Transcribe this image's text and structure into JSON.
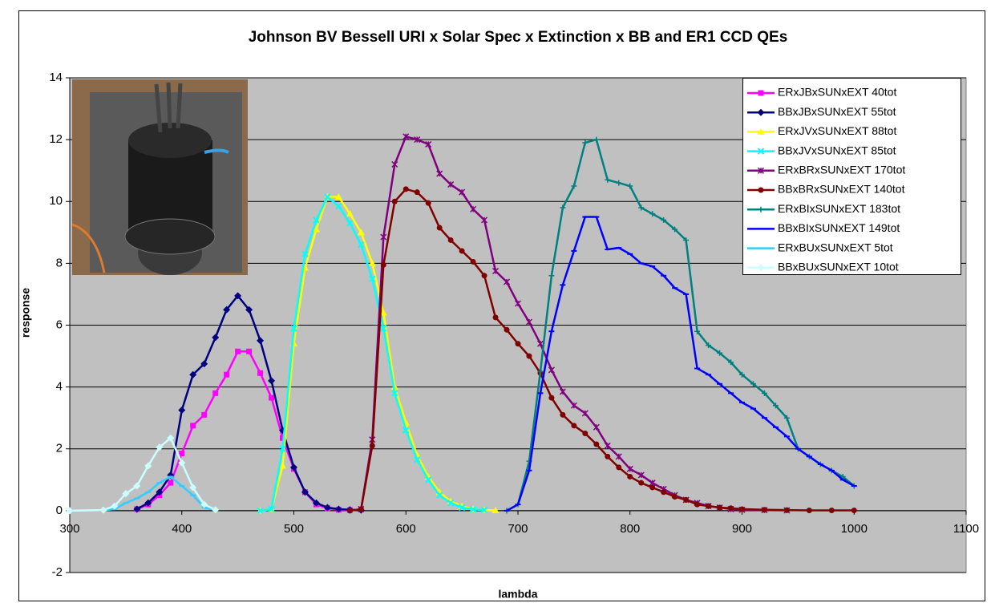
{
  "chart_data": {
    "type": "line",
    "title": "Johnson BV Bessell URI x Solar Spec x Extinction x BB and ER1 CCD QEs",
    "x_label": "lambda",
    "y_label": "response",
    "xlim": [
      300,
      1100
    ],
    "xticks": [
      300,
      400,
      500,
      600,
      700,
      800,
      900,
      1000,
      1100
    ],
    "ylim": [
      -2,
      14
    ],
    "yticks": [
      -2,
      0,
      2,
      4,
      6,
      8,
      10,
      12,
      14
    ],
    "grid": true,
    "legend": "upper right",
    "series": [
      {
        "name": "ERxJBxSUNxEXT 40tot",
        "color": "#ff00ff",
        "marker": "square",
        "x": [
          360,
          370,
          380,
          390,
          400,
          410,
          420,
          430,
          440,
          450,
          460,
          470,
          480,
          490,
          500,
          510,
          520,
          530,
          540,
          550
        ],
        "values": [
          0.05,
          0.2,
          0.5,
          0.9,
          1.85,
          2.75,
          3.1,
          3.8,
          4.4,
          5.15,
          5.15,
          4.45,
          3.65,
          2.35,
          1.35,
          0.6,
          0.2,
          0.08,
          0.03,
          0.02
        ]
      },
      {
        "name": "BBxJBxSUNxEXT 55tot",
        "color": "#000080",
        "marker": "diamond",
        "x": [
          360,
          370,
          380,
          390,
          400,
          410,
          420,
          430,
          440,
          450,
          460,
          470,
          480,
          490,
          500,
          510,
          520,
          530,
          540,
          550,
          560
        ],
        "values": [
          0.05,
          0.25,
          0.6,
          1.15,
          3.25,
          4.4,
          4.75,
          5.6,
          6.5,
          6.95,
          6.5,
          5.5,
          4.2,
          2.6,
          1.4,
          0.6,
          0.25,
          0.1,
          0.05,
          0.03,
          0.02
        ]
      },
      {
        "name": "ERxJVxSUNxEXT 88tot",
        "color": "#ffff00",
        "marker": "triangle",
        "x": [
          470,
          480,
          490,
          500,
          510,
          520,
          530,
          540,
          550,
          560,
          570,
          580,
          590,
          600,
          610,
          620,
          630,
          640,
          650,
          660,
          670,
          680
        ],
        "values": [
          0,
          0.05,
          1.45,
          5.4,
          7.85,
          9.1,
          10.15,
          10.15,
          9.6,
          9.0,
          8.0,
          6.4,
          4.0,
          2.85,
          1.8,
          1.1,
          0.6,
          0.3,
          0.15,
          0.05,
          0.02,
          0.01
        ]
      },
      {
        "name": "BBxJVxSUNxEXT 85tot",
        "color": "#00ffff",
        "marker": "x",
        "x": [
          470,
          480,
          490,
          500,
          510,
          520,
          530,
          540,
          550,
          560,
          570,
          580,
          590,
          600,
          610,
          620,
          630,
          640,
          650,
          660,
          670
        ],
        "values": [
          0,
          0.05,
          2.0,
          5.9,
          8.3,
          9.4,
          10.15,
          9.85,
          9.3,
          8.6,
          7.5,
          5.9,
          3.8,
          2.6,
          1.65,
          1.0,
          0.5,
          0.25,
          0.1,
          0.04,
          0.02
        ]
      },
      {
        "name": "ERxBRxSUNxEXT 170tot",
        "color": "#800080",
        "marker": "star",
        "x": [
          560,
          570,
          580,
          590,
          600,
          610,
          620,
          630,
          640,
          650,
          660,
          670,
          680,
          690,
          700,
          710,
          720,
          730,
          740,
          750,
          760,
          770,
          780,
          790,
          800,
          810,
          820,
          830,
          840,
          850,
          860,
          870,
          880,
          890,
          900,
          920,
          940
        ],
        "values": [
          0.05,
          2.3,
          8.85,
          11.2,
          12.1,
          12.0,
          11.85,
          10.9,
          10.55,
          10.3,
          9.75,
          9.4,
          7.75,
          7.4,
          6.7,
          6.1,
          5.4,
          4.55,
          3.85,
          3.4,
          3.15,
          2.7,
          2.1,
          1.75,
          1.35,
          1.15,
          0.9,
          0.7,
          0.5,
          0.35,
          0.25,
          0.15,
          0.1,
          0.05,
          0.03,
          0.02,
          0.01
        ]
      },
      {
        "name": "BBxBRxSUNxEXT 140tot",
        "color": "#800000",
        "marker": "circle",
        "x": [
          550,
          560,
          570,
          580,
          590,
          600,
          610,
          620,
          630,
          640,
          650,
          660,
          670,
          680,
          690,
          700,
          710,
          720,
          730,
          740,
          750,
          760,
          770,
          780,
          790,
          800,
          810,
          820,
          830,
          840,
          850,
          860,
          870,
          880,
          890,
          900,
          920,
          940,
          960,
          980,
          1000
        ],
        "values": [
          0,
          0.05,
          2.1,
          7.95,
          10.0,
          10.4,
          10.3,
          9.95,
          9.15,
          8.75,
          8.4,
          8.05,
          7.6,
          6.25,
          5.85,
          5.4,
          5.0,
          4.45,
          3.65,
          3.1,
          2.75,
          2.5,
          2.15,
          1.75,
          1.4,
          1.1,
          0.9,
          0.75,
          0.6,
          0.45,
          0.35,
          0.2,
          0.15,
          0.1,
          0.08,
          0.05,
          0.03,
          0.02,
          0.01,
          0.01,
          0.01
        ]
      },
      {
        "name": "ERxBIxSUNxEXT 183tot",
        "color": "#008080",
        "marker": "plus",
        "x": [
          690,
          700,
          710,
          720,
          730,
          740,
          750,
          760,
          770,
          780,
          790,
          800,
          810,
          820,
          830,
          840,
          850,
          860,
          870,
          880,
          890,
          900,
          910,
          920,
          930,
          940,
          950,
          960,
          970,
          980,
          990,
          1000
        ],
        "values": [
          0,
          0.2,
          1.6,
          4.5,
          7.6,
          9.8,
          10.5,
          11.9,
          12.0,
          10.7,
          10.6,
          10.5,
          9.8,
          9.6,
          9.4,
          9.1,
          8.75,
          5.8,
          5.35,
          5.1,
          4.8,
          4.4,
          4.1,
          3.8,
          3.4,
          3.0,
          2.0,
          1.75,
          1.5,
          1.3,
          1.1,
          0.8
        ]
      },
      {
        "name": "BBxBIxSUNxEXT 149tot",
        "color": "#0000ff",
        "marker": "dash",
        "x": [
          690,
          700,
          710,
          720,
          730,
          740,
          750,
          760,
          770,
          780,
          790,
          800,
          810,
          820,
          830,
          840,
          850,
          860,
          870,
          880,
          890,
          900,
          910,
          920,
          930,
          940,
          950,
          960,
          970,
          980,
          990,
          1000
        ],
        "values": [
          0,
          0.2,
          1.3,
          3.8,
          5.8,
          7.3,
          8.4,
          9.5,
          9.5,
          8.45,
          8.5,
          8.3,
          8.0,
          7.9,
          7.6,
          7.2,
          7.0,
          4.6,
          4.4,
          4.1,
          3.8,
          3.5,
          3.3,
          3.0,
          2.7,
          2.4,
          2.0,
          1.75,
          1.5,
          1.3,
          1.0,
          0.8
        ]
      },
      {
        "name": "ERxBUxSUNxEXT 5tot",
        "color": "#33ccff",
        "marker": "dash",
        "x": [
          330,
          340,
          350,
          360,
          370,
          380,
          390,
          400,
          410,
          420,
          430
        ],
        "values": [
          0.01,
          0.05,
          0.25,
          0.4,
          0.6,
          0.9,
          1.1,
          0.8,
          0.5,
          0.1,
          0.02
        ]
      },
      {
        "name": "BBxBUxSUNxEXT 10tot",
        "color": "#ccffff",
        "marker": "diamond",
        "x": [
          300,
          330,
          340,
          350,
          360,
          370,
          380,
          390,
          400,
          410,
          420,
          430
        ],
        "values": [
          0,
          0.02,
          0.15,
          0.55,
          0.8,
          1.45,
          2.05,
          2.35,
          1.55,
          0.75,
          0.2,
          0.03
        ]
      }
    ]
  }
}
